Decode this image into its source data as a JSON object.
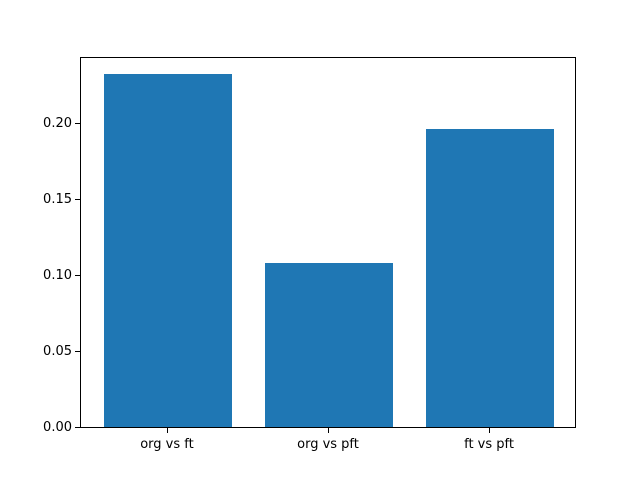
{
  "chart_data": {
    "type": "bar",
    "categories": [
      "org vs ft",
      "org vs pft",
      "ft vs pft"
    ],
    "values": [
      0.232,
      0.108,
      0.196
    ],
    "title": "",
    "xlabel": "",
    "ylabel": "",
    "ylim": [
      0,
      0.2437
    ],
    "xlim": [
      -0.54,
      2.54
    ],
    "bar_width_fraction": 0.8,
    "yticks": [
      {
        "value": 0.0,
        "label": "0.00"
      },
      {
        "value": 0.05,
        "label": "0.05"
      },
      {
        "value": 0.1,
        "label": "0.10"
      },
      {
        "value": 0.15,
        "label": "0.15"
      },
      {
        "value": 0.2,
        "label": "0.20"
      }
    ],
    "bar_color": "#1f77b4",
    "axes_background": "#ffffff",
    "figure_background": "#ffffff",
    "spine_color": "#000000",
    "grid": false,
    "legend": null
  }
}
